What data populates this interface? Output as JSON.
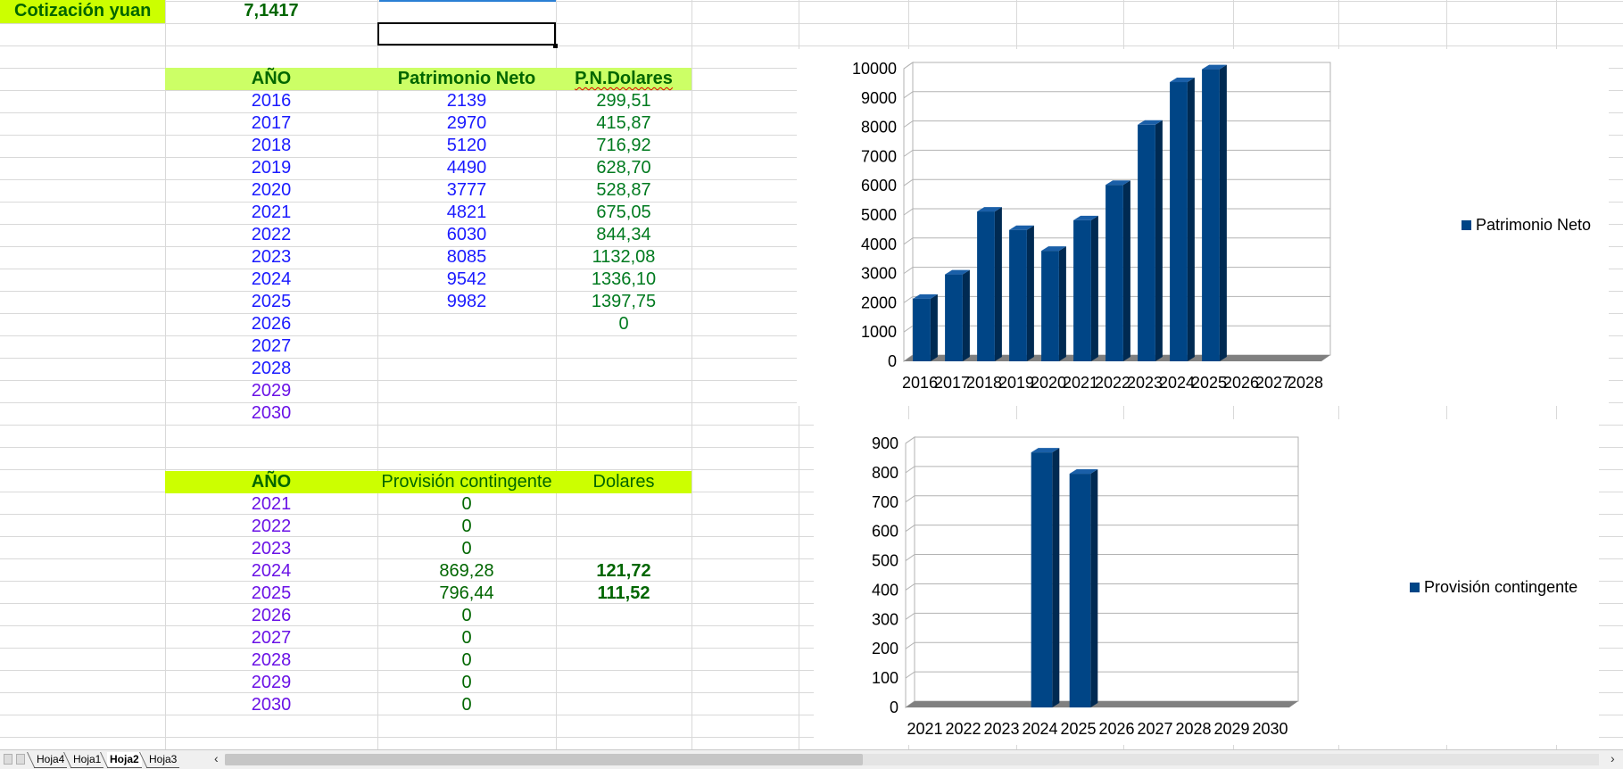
{
  "cotizacion": {
    "label": "Cotización yuan",
    "value": "7,1417"
  },
  "table1": {
    "headers": [
      "AÑO",
      "Patrimonio Neto",
      "P.N.Dolares"
    ],
    "rows": [
      [
        "2016",
        "2139",
        "299,51"
      ],
      [
        "2017",
        "2970",
        "415,87"
      ],
      [
        "2018",
        "5120",
        "716,92"
      ],
      [
        "2019",
        "4490",
        "628,70"
      ],
      [
        "2020",
        "3777",
        "528,87"
      ],
      [
        "2021",
        "4821",
        "675,05"
      ],
      [
        "2022",
        "6030",
        "844,34"
      ],
      [
        "2023",
        "8085",
        "1132,08"
      ],
      [
        "2024",
        "9542",
        "1336,10"
      ],
      [
        "2025",
        "9982",
        "1397,75"
      ],
      [
        "2026",
        "",
        "0"
      ],
      [
        "2027",
        "",
        ""
      ],
      [
        "2028",
        "",
        ""
      ],
      [
        "2029",
        "",
        ""
      ],
      [
        "2030",
        "",
        ""
      ]
    ]
  },
  "table2": {
    "headers": [
      "AÑO",
      "Provisión contingente",
      "Dolares"
    ],
    "rows": [
      [
        "2021",
        "0",
        ""
      ],
      [
        "2022",
        "0",
        ""
      ],
      [
        "2023",
        "0",
        ""
      ],
      [
        "2024",
        "869,28",
        "121,72"
      ],
      [
        "2025",
        "796,44",
        "111,52"
      ],
      [
        "2026",
        "0",
        ""
      ],
      [
        "2027",
        "0",
        ""
      ],
      [
        "2028",
        "0",
        ""
      ],
      [
        "2029",
        "0",
        ""
      ],
      [
        "2030",
        "0",
        ""
      ]
    ]
  },
  "chart_data": [
    {
      "type": "bar",
      "categories": [
        "2016",
        "2017",
        "2018",
        "2019",
        "2020",
        "2021",
        "2022",
        "2023",
        "2024",
        "2025",
        "2026",
        "2027",
        "2028"
      ],
      "series": [
        {
          "name": "Patrimonio Neto",
          "values": [
            2139,
            2970,
            5120,
            4490,
            3777,
            4821,
            6030,
            8085,
            9542,
            9982,
            null,
            null,
            null
          ]
        }
      ],
      "ylim": [
        0,
        10000
      ],
      "yticks": [
        0,
        1000,
        2000,
        3000,
        4000,
        5000,
        6000,
        7000,
        8000,
        9000,
        10000
      ],
      "grid": true,
      "legend": "right",
      "color": "#004586"
    },
    {
      "type": "bar",
      "categories": [
        "2021",
        "2022",
        "2023",
        "2024",
        "2025",
        "2026",
        "2027",
        "2028",
        "2029",
        "2030"
      ],
      "series": [
        {
          "name": "Provisión contingente",
          "values": [
            0,
            0,
            0,
            869.28,
            796.44,
            0,
            0,
            0,
            0,
            0
          ]
        }
      ],
      "ylim": [
        0,
        900
      ],
      "yticks": [
        0,
        100,
        200,
        300,
        400,
        500,
        600,
        700,
        800,
        900
      ],
      "grid": true,
      "legend": "right",
      "color": "#004586"
    }
  ],
  "sheet_tabs": [
    {
      "label": "Hoja4",
      "active": false
    },
    {
      "label": "Hoja1",
      "active": false
    },
    {
      "label": "Hoja2",
      "active": true
    },
    {
      "label": "Hoja3",
      "active": false
    }
  ],
  "colors": {
    "header_bg": "#ccff66",
    "lime_bg": "#ccff00",
    "bar": "#004586"
  },
  "icons": {
    "scroll_left": "triangle-left-icon",
    "scroll_right": "triangle-right-icon"
  }
}
